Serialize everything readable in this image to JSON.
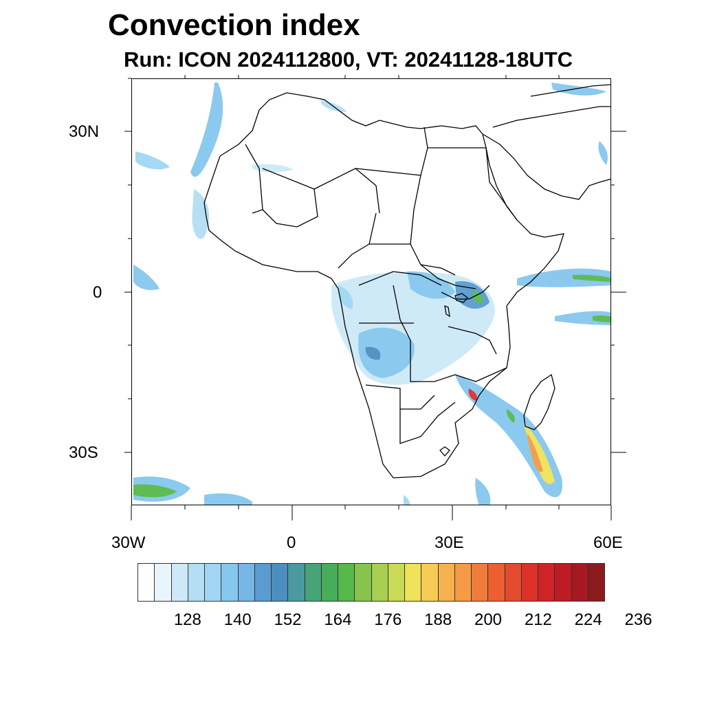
{
  "title": "Convection index",
  "subtitle": "Run: ICON 2024112800,  VT: 20241128-18UTC",
  "axes": {
    "lat_labels": [
      {
        "text": "30N",
        "value": 30
      },
      {
        "text": "0",
        "value": 0
      },
      {
        "text": "30S",
        "value": -30
      }
    ],
    "lon_labels": [
      {
        "text": "30W",
        "value": -30
      },
      {
        "text": "0",
        "value": 0
      },
      {
        "text": "30E",
        "value": 30
      },
      {
        "text": "60E",
        "value": 60
      }
    ],
    "lat_range": [
      -40,
      40
    ],
    "lon_range": [
      -30,
      60
    ]
  },
  "colorbar": {
    "colors": [
      "#ffffff",
      "#e8f5fc",
      "#cde9f7",
      "#b4def4",
      "#a0d6f3",
      "#86c7ee",
      "#76b6e4",
      "#5a9bd1",
      "#4b8fc0",
      "#4a9aa0",
      "#46a478",
      "#47ad5a",
      "#56b94a",
      "#86c44e",
      "#a8cf52",
      "#c9da56",
      "#eee35a",
      "#f7cc55",
      "#f6b14e",
      "#f59a45",
      "#f07c3c",
      "#ec5f31",
      "#e44a2d",
      "#dc3129",
      "#cf2427",
      "#bf1b25",
      "#a61922",
      "#8b1a1c"
    ],
    "labels": [
      "128",
      "140",
      "152",
      "164",
      "176",
      "188",
      "200",
      "212",
      "224",
      "236"
    ]
  }
}
